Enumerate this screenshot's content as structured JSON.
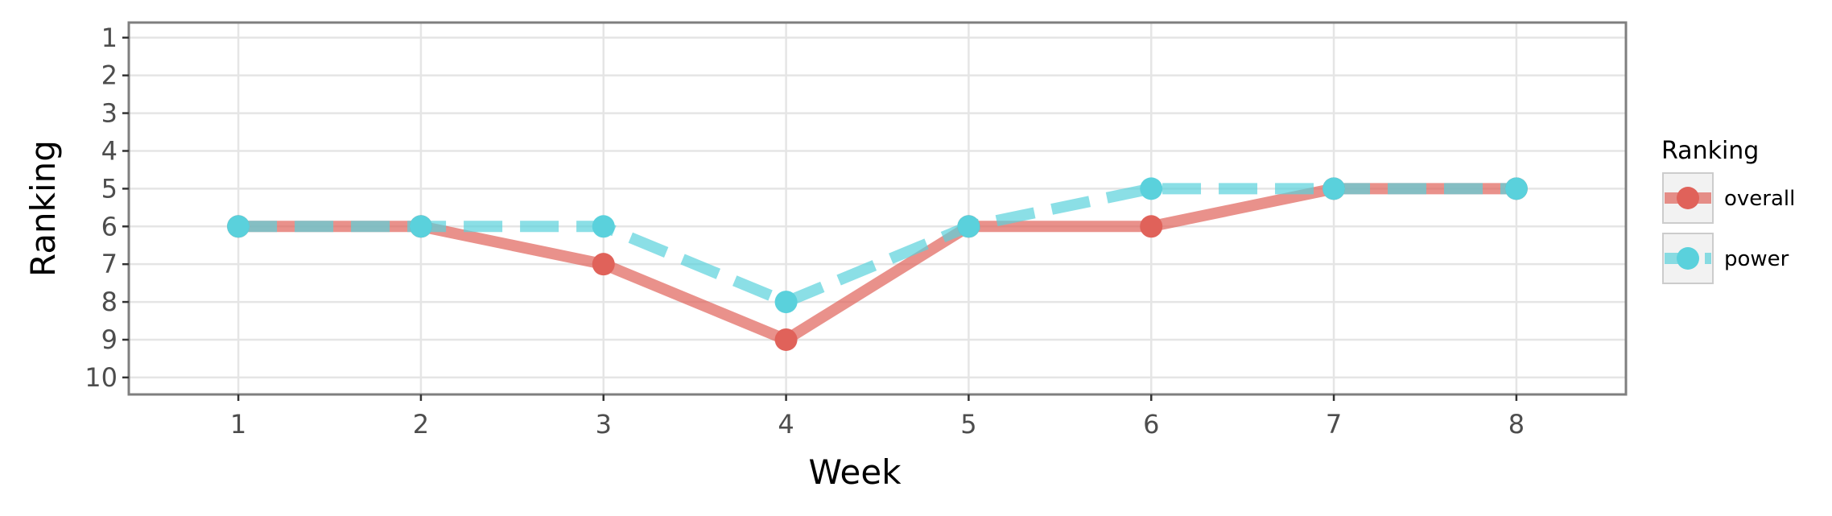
{
  "chart_data": {
    "type": "line",
    "xlabel": "Week",
    "ylabel": "Ranking",
    "x": [
      1,
      2,
      3,
      4,
      5,
      6,
      7,
      8
    ],
    "xlim": [
      0.4,
      8.6
    ],
    "ylim": [
      10.45,
      0.6
    ],
    "y_reversed": true,
    "x_ticks": [
      "1",
      "2",
      "3",
      "4",
      "5",
      "6",
      "7",
      "8"
    ],
    "y_ticks": [
      "1",
      "2",
      "3",
      "4",
      "5",
      "6",
      "7",
      "8",
      "9",
      "10"
    ],
    "grid": true,
    "legend": {
      "title": "Ranking",
      "position": "right"
    },
    "series": [
      {
        "name": "overall",
        "values": [
          6,
          6,
          7,
          9,
          6,
          6,
          5,
          5
        ],
        "color": "#e0625a",
        "line_style": "solid"
      },
      {
        "name": "power",
        "values": [
          6,
          6,
          6,
          8,
          6,
          5,
          5,
          5
        ],
        "color": "#5ad1dc",
        "line_style": "dashed"
      }
    ]
  }
}
